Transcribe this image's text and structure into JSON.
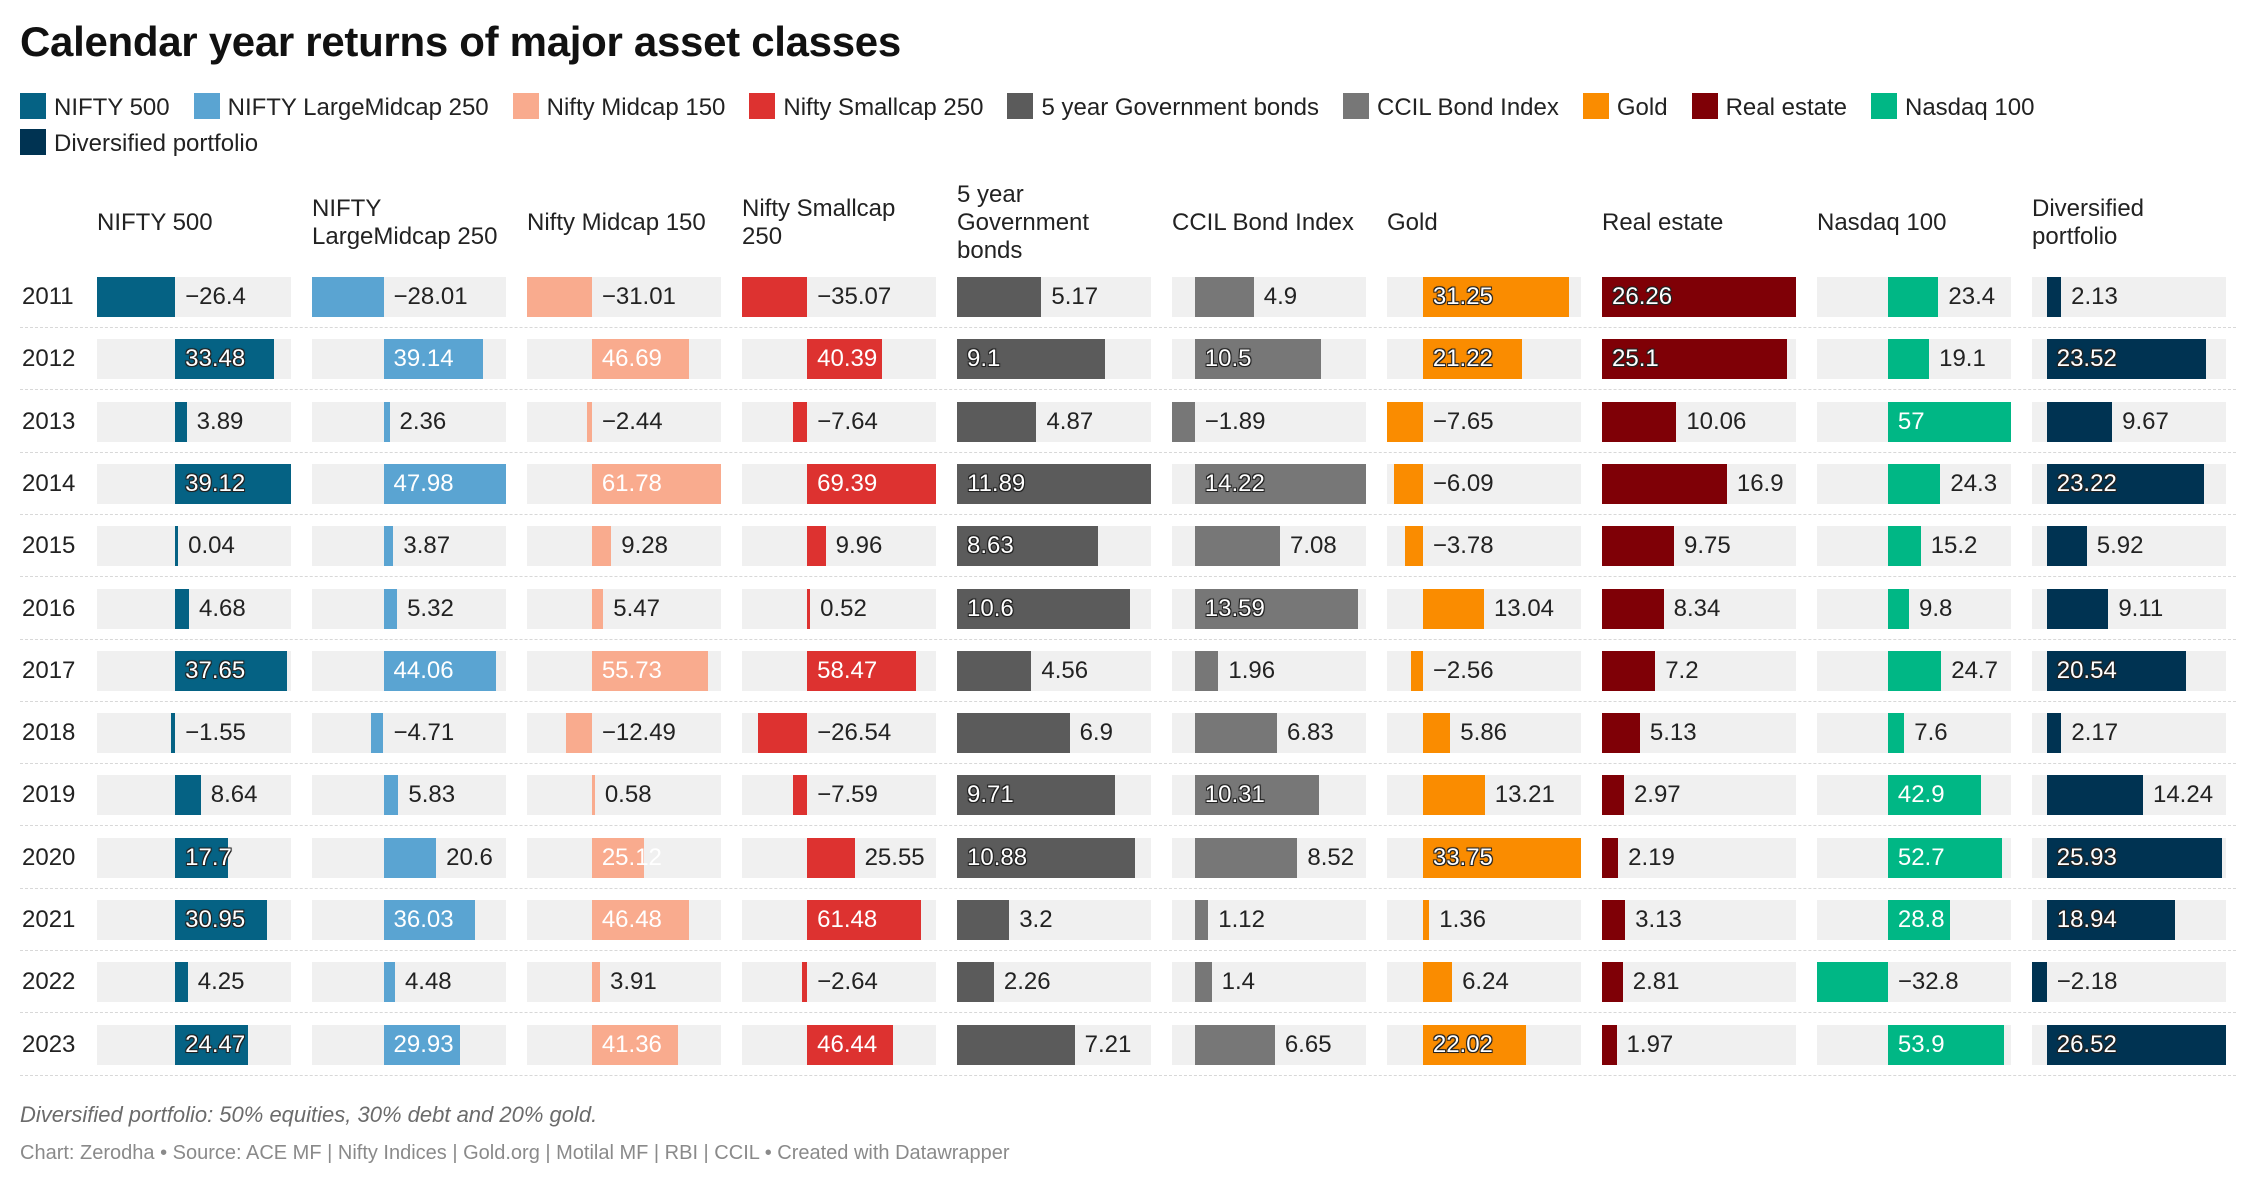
{
  "title": "Calendar year returns of major asset classes",
  "footnote": "Diversified portfolio: 50% equities, 30% debt and 20% gold.",
  "credits": "Chart: Zerodha • Source: ACE MF | Nifty Indices | Gold.org | Motilal MF | RBI | CCIL • Created with Datawrapper",
  "chart_data": {
    "type": "table",
    "title": "Calendar year returns of major asset classes",
    "categories": [
      "2011",
      "2012",
      "2013",
      "2014",
      "2015",
      "2016",
      "2017",
      "2018",
      "2019",
      "2020",
      "2021",
      "2022",
      "2023"
    ],
    "legend_placement": "top-left",
    "series": [
      {
        "name": "NIFTY 500",
        "header": "NIFTY 500",
        "color": "#056284",
        "values": [
          -26.4,
          33.48,
          3.89,
          39.12,
          0.04,
          4.68,
          37.65,
          -1.55,
          8.64,
          17.7,
          30.95,
          4.25,
          24.47
        ],
        "labels": [
          "−26.4",
          "33.48",
          "3.89",
          "39.12",
          "0.04",
          "4.68",
          "37.65",
          "−1.55",
          "8.64",
          "17.7",
          "30.95",
          "4.25",
          "24.47"
        ]
      },
      {
        "name": "NIFTY LargeMidcap 250",
        "header": "NIFTY LargeMidcap 250",
        "color": "#5aa4d2",
        "values": [
          -28.01,
          39.14,
          2.36,
          47.98,
          3.87,
          5.32,
          44.06,
          -4.71,
          5.83,
          20.6,
          36.03,
          4.48,
          29.93
        ],
        "labels": [
          "−28.01",
          "39.14",
          "2.36",
          "47.98",
          "3.87",
          "5.32",
          "44.06",
          "−4.71",
          "5.83",
          "20.6",
          "36.03",
          "4.48",
          "29.93"
        ]
      },
      {
        "name": "Nifty Midcap 150",
        "header": "Nifty Midcap 150",
        "color": "#f9ab8e",
        "values": [
          -31.01,
          46.69,
          -2.44,
          61.78,
          9.28,
          5.47,
          55.73,
          -12.49,
          0.58,
          25.12,
          46.48,
          3.91,
          41.36
        ],
        "labels": [
          "−31.01",
          "46.69",
          "−2.44",
          "61.78",
          "9.28",
          "5.47",
          "55.73",
          "−12.49",
          "0.58",
          "25.12",
          "46.48",
          "3.91",
          "41.36"
        ]
      },
      {
        "name": "Nifty Smallcap 250",
        "header": "Nifty Smallcap 250",
        "color": "#dd3230",
        "values": [
          -35.07,
          40.39,
          -7.64,
          69.39,
          9.96,
          0.52,
          58.47,
          -26.54,
          -7.59,
          25.55,
          61.48,
          -2.64,
          46.44
        ],
        "labels": [
          "−35.07",
          "40.39",
          "−7.64",
          "69.39",
          "9.96",
          "0.52",
          "58.47",
          "−26.54",
          "−7.59",
          "25.55",
          "61.48",
          "−2.64",
          "46.44"
        ]
      },
      {
        "name": "5 year Government bonds",
        "header": "5 year Government bonds",
        "color": "#5b5b5b",
        "values": [
          5.17,
          9.1,
          4.87,
          11.89,
          8.63,
          10.6,
          4.56,
          6.9,
          9.71,
          10.88,
          3.2,
          2.26,
          7.21
        ],
        "labels": [
          "5.17",
          "9.1",
          "4.87",
          "11.89",
          "8.63",
          "10.6",
          "4.56",
          "6.9",
          "9.71",
          "10.88",
          "3.2",
          "2.26",
          "7.21"
        ]
      },
      {
        "name": "CCIL Bond Index",
        "header": "CCIL Bond Index",
        "color": "#777777",
        "values": [
          4.9,
          10.5,
          -1.89,
          14.22,
          7.08,
          13.59,
          1.96,
          6.83,
          10.31,
          8.52,
          1.12,
          1.4,
          6.65
        ],
        "labels": [
          "4.9",
          "10.5",
          "−1.89",
          "14.22",
          "7.08",
          "13.59",
          "1.96",
          "6.83",
          "10.31",
          "8.52",
          "1.12",
          "1.4",
          "6.65"
        ]
      },
      {
        "name": "Gold",
        "header": "Gold",
        "color": "#fa8c00",
        "values": [
          31.25,
          21.22,
          -7.65,
          -6.09,
          -3.78,
          13.04,
          -2.56,
          5.86,
          13.21,
          33.75,
          1.36,
          6.24,
          22.02
        ],
        "labels": [
          "31.25",
          "21.22",
          "−7.65",
          "−6.09",
          "−3.78",
          "13.04",
          "−2.56",
          "5.86",
          "13.21",
          "33.75",
          "1.36",
          "6.24",
          "22.02"
        ]
      },
      {
        "name": "Real estate",
        "header": "Real estate",
        "color": "#7f0006",
        "values": [
          26.26,
          25.1,
          10.06,
          16.9,
          9.75,
          8.34,
          7.2,
          5.13,
          2.97,
          2.19,
          3.13,
          2.81,
          1.97
        ],
        "labels": [
          "26.26",
          "25.1",
          "10.06",
          "16.9",
          "9.75",
          "8.34",
          "7.2",
          "5.13",
          "2.97",
          "2.19",
          "3.13",
          "2.81",
          "1.97"
        ]
      },
      {
        "name": "Nasdaq 100",
        "header": "Nasdaq 100",
        "color": "#00b785",
        "values": [
          23.4,
          19.1,
          57,
          24.3,
          15.2,
          9.8,
          24.7,
          7.6,
          42.9,
          52.7,
          28.8,
          -32.8,
          53.9
        ],
        "labels": [
          "23.4",
          "19.1",
          "57",
          "24.3",
          "15.2",
          "9.8",
          "24.7",
          "7.6",
          "42.9",
          "52.7",
          "28.8",
          "−32.8",
          "53.9"
        ]
      },
      {
        "name": "Diversified portfolio",
        "header": "Diversified portfolio",
        "color": "#003352",
        "values": [
          2.13,
          23.52,
          9.67,
          23.22,
          5.92,
          9.11,
          20.54,
          2.17,
          14.24,
          25.93,
          18.94,
          -2.18,
          26.52
        ],
        "labels": [
          "2.13",
          "23.52",
          "9.67",
          "23.22",
          "5.92",
          "9.11",
          "20.54",
          "2.17",
          "14.24",
          "25.93",
          "18.94",
          "−2.18",
          "26.52"
        ]
      }
    ]
  }
}
